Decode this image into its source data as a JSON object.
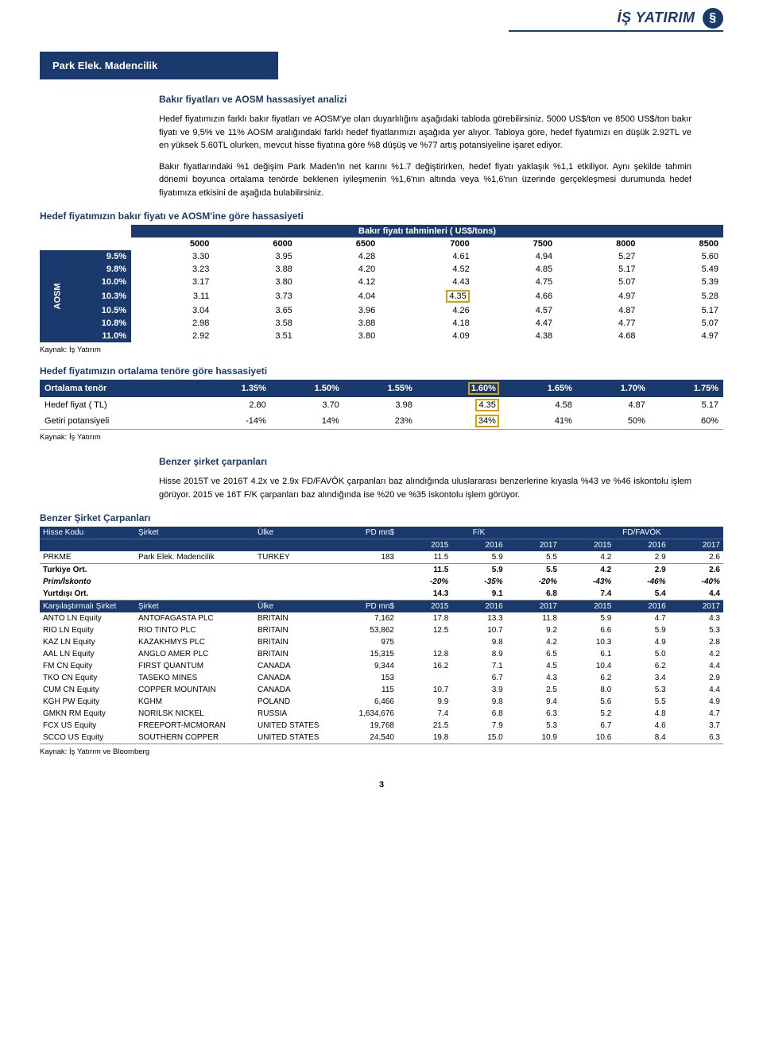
{
  "header": {
    "logo_text": "İŞ YATIRIM",
    "logo_glyph": "§"
  },
  "company_band": "Park Elek. Madencilik",
  "section1": {
    "title": "Bakır fiyatları ve AOSM hassasiyet analizi",
    "p1": "Hedef fiyatımızın farklı bakır fiyatları ve AOSM'ye olan duyarlılığını aşağıdaki tabloda görebilirsiniz. 5000 US$/ton ve 8500 US$/ton bakır fiyatı ve 9,5% ve 11% AOSM aralığındaki farklı hedef fiyatlarımızı aşağıda yer alıyor. Tabloya göre, hedef fiyatımızı en düşük 2.92TL ve en yüksek 5.60TL olurken, mevcut hisse fiyatına göre %8 düşüş ve %77 artış potansiyeline işaret ediyor.",
    "p2": "Bakır fiyatlarındaki %1 değişim Park Maden'in net karını %1.7 değiştirirken, hedef fiyatı yaklaşık %1,1 etkiliyor. Aynı şekilde tahmin dönemi boyunca ortalama tenörde beklenen iyileşmenin %1,6'nın altında veya %1,6'nın üzerinde gerçekleşmesi durumunda hedef fiyatımıza etkisini de aşağıda bulabilirsiniz."
  },
  "sens_table": {
    "title": "Hedef fiyatımızın bakır fiyatı ve AOSM'ine göre hassasiyeti",
    "col_header": "Bakır fiyatı tahminleri ( US$/tons)",
    "side_label": "AOSM",
    "cols": [
      "5000",
      "6000",
      "6500",
      "7000",
      "7500",
      "8000",
      "8500"
    ],
    "row_labels": [
      "9.5%",
      "9.8%",
      "10.0%",
      "10.3%",
      "10.5%",
      "10.8%",
      "11.0%"
    ],
    "data": [
      [
        "3.30",
        "3.95",
        "4.28",
        "4.61",
        "4.94",
        "5.27",
        "5.60"
      ],
      [
        "3.23",
        "3.88",
        "4.20",
        "4.52",
        "4.85",
        "5.17",
        "5.49"
      ],
      [
        "3.17",
        "3.80",
        "4.12",
        "4.43",
        "4.75",
        "5.07",
        "5.39"
      ],
      [
        "3.11",
        "3.73",
        "4.04",
        "4.35",
        "4.66",
        "4.97",
        "5.28"
      ],
      [
        "3.04",
        "3.65",
        "3.96",
        "4.26",
        "4.57",
        "4.87",
        "5.17"
      ],
      [
        "2.98",
        "3.58",
        "3.88",
        "4.18",
        "4.47",
        "4.77",
        "5.07"
      ],
      [
        "2.92",
        "3.51",
        "3.80",
        "4.09",
        "4.38",
        "4.68",
        "4.97"
      ]
    ],
    "highlight_row": 3,
    "highlight_col": 3,
    "source": "Kaynak: İş Yatırım"
  },
  "tenor_table": {
    "title": "Hedef fiyatımızın ortalama tenöre göre hassasiyeti",
    "header_label": "Ortalama tenör",
    "cols": [
      "1.35%",
      "1.50%",
      "1.55%",
      "1.60%",
      "1.65%",
      "1.70%",
      "1.75%"
    ],
    "rows": [
      {
        "label": "Hedef fiyat ( TL)",
        "vals": [
          "2.80",
          "3.70",
          "3.98",
          "4.35",
          "4.58",
          "4.87",
          "5.17"
        ]
      },
      {
        "label": "Getiri potansiyeli",
        "vals": [
          "-14%",
          "14%",
          "23%",
          "34%",
          "41%",
          "50%",
          "60%"
        ]
      }
    ],
    "highlight_col": 3,
    "source": "Kaynak: İş Yatırım"
  },
  "section2": {
    "title": "Benzer şirket çarpanları",
    "p1": "Hisse 2015T ve 2016T 4.2x ve 2.9x FD/FAVÖK çarpanları baz alındığında uluslararası benzerlerine kıyasla %43 ve %46 iskontolu işlem görüyor. 2015 ve 16T F/K çarpanları baz alındığında ise %20 ve %35 iskontolu işlem görüyor."
  },
  "comps": {
    "title": "Benzer Şirket Çarpanları",
    "hdr1": [
      "Hisse Kodu",
      "Şirket",
      "Ülke",
      "PD mn$",
      "F/K",
      "FD/FAVÖK"
    ],
    "hdr2_years": [
      "2015",
      "2016",
      "2017",
      "2015",
      "2016",
      "2017"
    ],
    "prkme": {
      "code": "PRKME",
      "name": "Park Elek. Madencilik",
      "country": "TURKEY",
      "pd": "183",
      "fk": [
        "11.5",
        "5.9",
        "5.5"
      ],
      "fd": [
        "4.2",
        "2.9",
        "2.6"
      ]
    },
    "turkey_avg": {
      "label": "Turkiye Ort.",
      "fk": [
        "11.5",
        "5.9",
        "5.5"
      ],
      "fd": [
        "4.2",
        "2.9",
        "2.6"
      ]
    },
    "prim": {
      "label": "Prim/İskonto",
      "fk": [
        "-20%",
        "-35%",
        "-20%"
      ],
      "fd": [
        "-43%",
        "-46%",
        "-40%"
      ]
    },
    "foreign_avg": {
      "label": "Yurtdışı Ort.",
      "fk": [
        "14.3",
        "9.1",
        "6.8"
      ],
      "fd": [
        "7.4",
        "5.4",
        "4.4"
      ]
    },
    "sub_hdr": [
      "Karşılaştırmalı Şirket",
      "Şirket",
      "Ülke",
      "PD mn$",
      "2015",
      "2016",
      "2017",
      "2015",
      "2016",
      "2017"
    ],
    "rows": [
      {
        "code": "ANTO LN Equity",
        "name": "ANTOFAGASTA PLC",
        "country": "BRITAIN",
        "pd": "7,162",
        "v": [
          "17.8",
          "13.3",
          "11.8",
          "5.9",
          "4.7",
          "4.3"
        ]
      },
      {
        "code": "RIO LN Equity",
        "name": "RIO TINTO PLC",
        "country": "BRITAIN",
        "pd": "53,862",
        "v": [
          "12.5",
          "10.7",
          "9.2",
          "6.6",
          "5.9",
          "5.3"
        ]
      },
      {
        "code": "KAZ LN Equity",
        "name": "KAZAKHMYS PLC",
        "country": "BRITAIN",
        "pd": "975",
        "v": [
          "",
          "9.8",
          "4.2",
          "10.3",
          "4.9",
          "2.8"
        ]
      },
      {
        "code": "AAL LN Equity",
        "name": "ANGLO AMER PLC",
        "country": "BRITAIN",
        "pd": "15,315",
        "v": [
          "12.8",
          "8.9",
          "6.5",
          "6.1",
          "5.0",
          "4.2"
        ]
      },
      {
        "code": "FM CN Equity",
        "name": "FIRST QUANTUM",
        "country": "CANADA",
        "pd": "9,344",
        "v": [
          "16.2",
          "7.1",
          "4.5",
          "10.4",
          "6.2",
          "4.4"
        ]
      },
      {
        "code": "TKO CN Equity",
        "name": "TASEKO MINES",
        "country": "CANADA",
        "pd": "153",
        "v": [
          "",
          "6.7",
          "4.3",
          "6.2",
          "3.4",
          "2.9"
        ]
      },
      {
        "code": "CUM CN Equity",
        "name": "COPPER MOUNTAIN",
        "country": "CANADA",
        "pd": "115",
        "v": [
          "10.7",
          "3.9",
          "2.5",
          "8.0",
          "5.3",
          "4.4"
        ]
      },
      {
        "code": "KGH PW Equity",
        "name": "KGHM",
        "country": "POLAND",
        "pd": "6,466",
        "v": [
          "9.9",
          "9.8",
          "9.4",
          "5.6",
          "5.5",
          "4.9"
        ]
      },
      {
        "code": "GMKN RM Equity",
        "name": "NORILSK NICKEL",
        "country": "RUSSIA",
        "pd": "1,634,676",
        "v": [
          "7.4",
          "6.8",
          "6.3",
          "5.2",
          "4.8",
          "4.7"
        ]
      },
      {
        "code": "FCX US Equity",
        "name": "FREEPORT-MCMORAN",
        "country": "UNITED STATES",
        "pd": "19,768",
        "v": [
          "21.5",
          "7.9",
          "5.3",
          "6.7",
          "4.6",
          "3.7"
        ]
      },
      {
        "code": "SCCO US Equity",
        "name": "SOUTHERN COPPER",
        "country": "UNITED STATES",
        "pd": "24,540",
        "v": [
          "19.8",
          "15.0",
          "10.9",
          "10.6",
          "8.4",
          "6.3"
        ]
      }
    ],
    "source": "Kaynak: İş Yatırım ve Bloomberg"
  },
  "page_number": "3"
}
